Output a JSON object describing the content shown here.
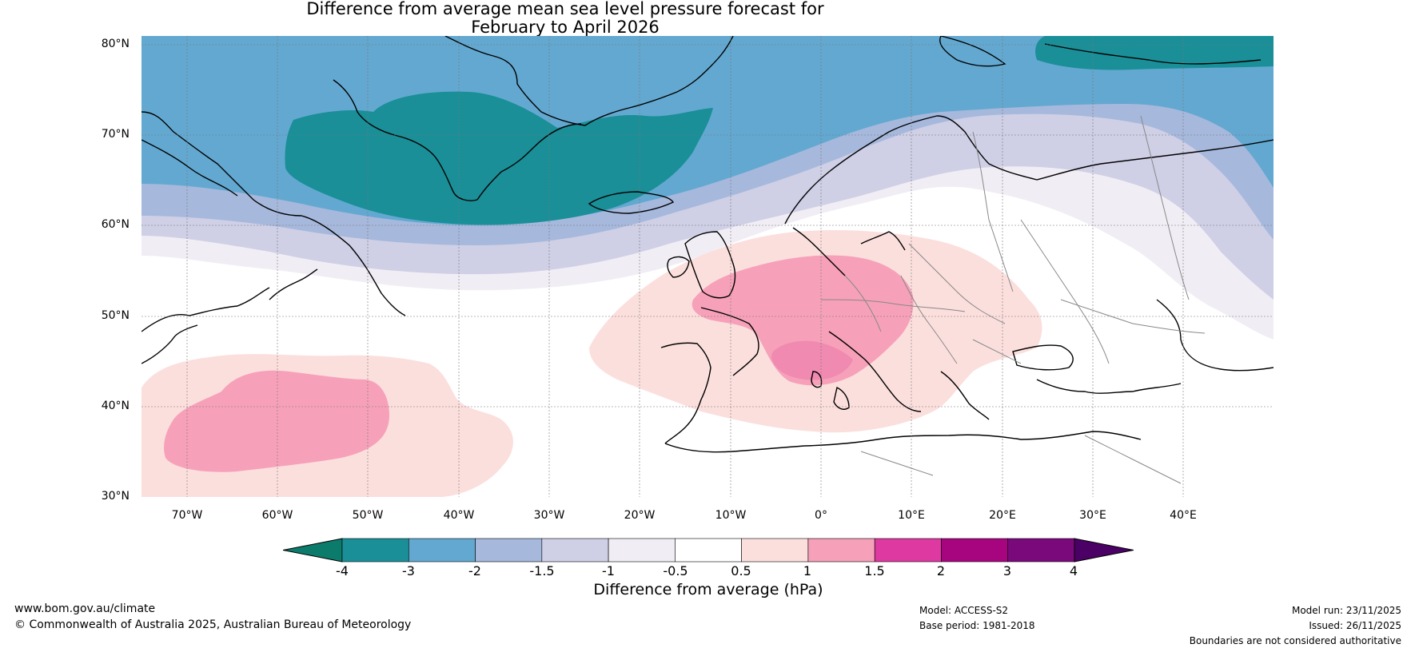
{
  "title_line1": "Difference from average mean sea level pressure forecast for",
  "title_line2": "February to April 2026",
  "map": {
    "lat_labels": [
      "80°N",
      "70°N",
      "60°N",
      "50°N",
      "40°N",
      "30°N"
    ],
    "lon_labels": [
      "70°W",
      "60°W",
      "50°W",
      "40°W",
      "30°W",
      "20°W",
      "10°W",
      "0°",
      "10°E",
      "20°E",
      "30°E",
      "40°E"
    ],
    "extent": {
      "lon_min": -75,
      "lon_max": 50,
      "lat_min": 30,
      "lat_max": 81
    }
  },
  "legend": {
    "title": "Difference from average (hPa)",
    "ticks": [
      "-4",
      "-3",
      "-2",
      "-1.5",
      "-1",
      "-0.5",
      "0.5",
      "1",
      "1.5",
      "2",
      "3",
      "4"
    ],
    "colors": [
      "#0b7b6c",
      "#1a8f98",
      "#63a8d0",
      "#a6b8dc",
      "#cfcfe6",
      "#f1edf4",
      "#ffffff",
      "#fbdfdd",
      "#f6a1b9",
      "#de39a0",
      "#a7057f",
      "#7a0a7c",
      "#4b0066"
    ]
  },
  "footer": {
    "website": "www.bom.gov.au/climate",
    "copyright": "© Commonwealth of Australia 2025, Australian Bureau of Meteorology",
    "model": "Model: ACCESS-S2",
    "base_period": "Base period: 1981-2018",
    "model_run": "Model run: 23/11/2025",
    "issued": "Issued: 26/11/2025",
    "disclaimer": "Boundaries are not considered authoritative"
  }
}
